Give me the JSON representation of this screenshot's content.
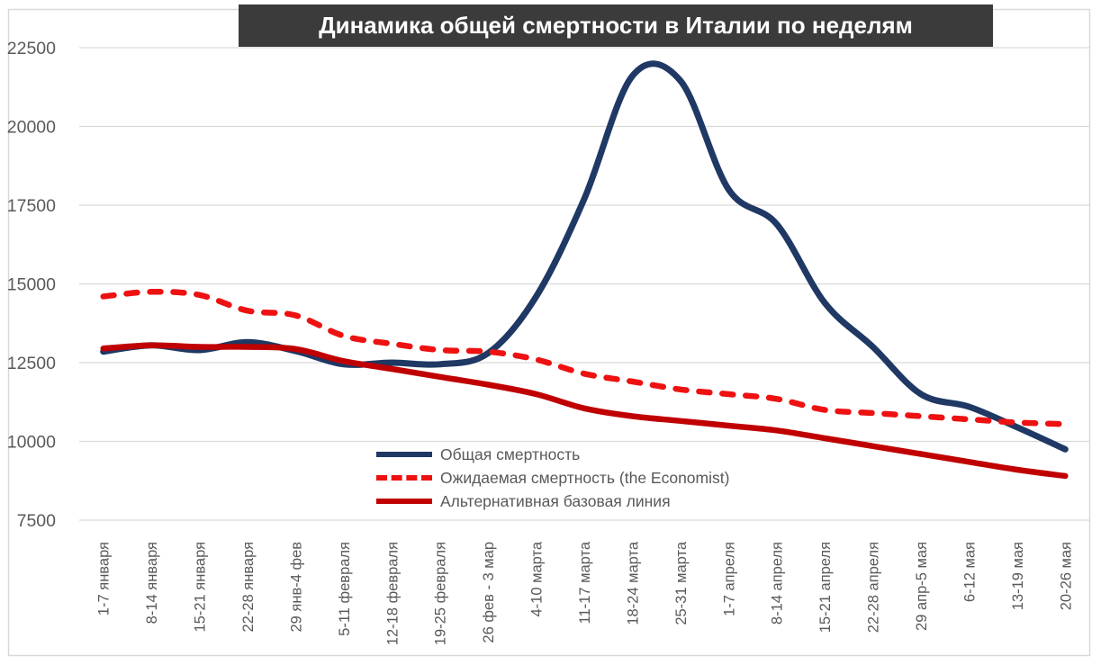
{
  "chart_data": {
    "type": "line",
    "title": "Динамика общей смертности в Италии по неделям",
    "categories": [
      "1-7 января",
      "8-14 января",
      "15-21 января",
      "22-28 января",
      "29 янв-4 фев",
      "5-11 февраля",
      "12-18 февраля",
      "19-25 февраля",
      "26 фев - 3 мар",
      "4-10 марта",
      "11-17 марта",
      "18-24 марта",
      "25-31 марта",
      "1-7 апреля",
      "8-14 апреля",
      "15-21 апреля",
      "22-28 апреля",
      "29 апр-5 мая",
      "6-12 мая",
      "13-19 мая",
      "20-26 мая"
    ],
    "series": [
      {
        "name": "Общая смертность",
        "color": "#1f3864",
        "style": "solid",
        "stroke_width": 7,
        "values": [
          12850,
          13050,
          12900,
          13150,
          12870,
          12450,
          12500,
          12450,
          12800,
          14600,
          17700,
          21600,
          21450,
          18000,
          16900,
          14400,
          13000,
          11500,
          11100,
          10450,
          9750
        ]
      },
      {
        "name": "Ожидаемая смертность (the Economist)",
        "color": "#ee1111",
        "style": "dashed",
        "stroke_width": 6.5,
        "values": [
          14600,
          14750,
          14650,
          14150,
          14000,
          13350,
          13100,
          12900,
          12850,
          12600,
          12150,
          11900,
          11650,
          11500,
          11350,
          11000,
          10900,
          10800,
          10700,
          10600,
          10550
        ]
      },
      {
        "name": "Альтернативная базовая линия",
        "color": "#c00000",
        "style": "solid",
        "stroke_width": 6.5,
        "values": [
          12950,
          13050,
          13000,
          13000,
          12930,
          12550,
          12300,
          12050,
          11800,
          11500,
          11050,
          10800,
          10650,
          10500,
          10350,
          10100,
          9850,
          9600,
          9350,
          9100,
          8900
        ]
      }
    ],
    "y_ticks": [
      7500,
      10000,
      12500,
      15000,
      17500,
      20000,
      22500
    ],
    "ylim": [
      7500,
      22500
    ],
    "xlabel": "",
    "ylabel": "",
    "grid": "horizontal",
    "legend_position": "inside-bottom-center"
  },
  "colors": {
    "title_background": "#3b3b3b",
    "title_text": "#ffffff",
    "axis_text": "#595959",
    "gridline": "#d9d9d9",
    "chart_border": "#d9d9d9",
    "background": "#ffffff"
  }
}
